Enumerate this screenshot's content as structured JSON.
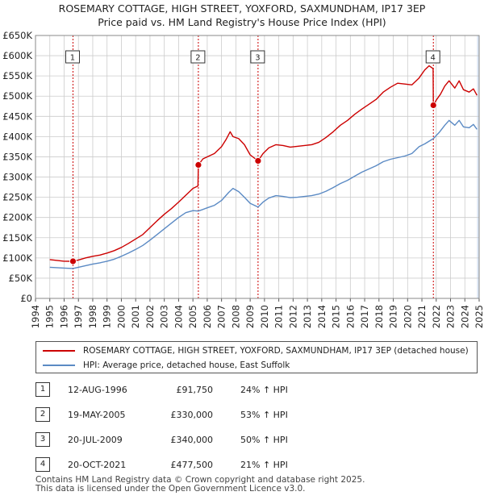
{
  "title_line1": "ROSEMARY COTTAGE, HIGH STREET, YOXFORD, SAXMUNDHAM, IP17 3EP",
  "title_line2": "Price paid vs. HM Land Registry's House Price Index (HPI)",
  "colors": {
    "property": "#cc0000",
    "hpi": "#5b8ac4",
    "marker_line": "#cc0000",
    "shade": "#dbe6f5",
    "grid": "#cccccc"
  },
  "legend": {
    "property": "ROSEMARY COTTAGE, HIGH STREET, YOXFORD, SAXMUNDHAM, IP17 3EP (detached house)",
    "hpi": "HPI: Average price, detached house, East Suffolk"
  },
  "sales": [
    {
      "num": "1",
      "date": "12-AUG-1996",
      "price": "£91,750",
      "hpi": "24% ↑ HPI"
    },
    {
      "num": "2",
      "date": "19-MAY-2005",
      "price": "£330,000",
      "hpi": "53% ↑ HPI"
    },
    {
      "num": "3",
      "date": "20-JUL-2009",
      "price": "£340,000",
      "hpi": "50% ↑ HPI"
    },
    {
      "num": "4",
      "date": "20-OCT-2021",
      "price": "£477,500",
      "hpi": "21% ↑ HPI"
    }
  ],
  "footer_line1": "Contains HM Land Registry data © Crown copyright and database right 2025.",
  "footer_line2": "This data is licensed under the Open Government Licence v3.0.",
  "chart_data": {
    "type": "line",
    "title": "ROSEMARY COTTAGE, HIGH STREET, YOXFORD, SAXMUNDHAM, IP17 3EP — Price paid vs. HM Land Registry's House Price Index (HPI)",
    "xlabel": "",
    "ylabel": "",
    "xlim": [
      1994,
      2025
    ],
    "ylim": [
      0,
      650000
    ],
    "x_ticks": [
      "1994",
      "1995",
      "1996",
      "1997",
      "1998",
      "1999",
      "2000",
      "2001",
      "2002",
      "2003",
      "2004",
      "2005",
      "2006",
      "2007",
      "2008",
      "2009",
      "2010",
      "2011",
      "2012",
      "2013",
      "2014",
      "2015",
      "2016",
      "2017",
      "2018",
      "2019",
      "2020",
      "2021",
      "2022",
      "2023",
      "2024",
      "2025"
    ],
    "y_ticks": [
      0,
      50000,
      100000,
      150000,
      200000,
      250000,
      300000,
      350000,
      400000,
      450000,
      500000,
      550000,
      600000,
      650000
    ],
    "y_tick_labels": [
      "£0",
      "£50K",
      "£100K",
      "£150K",
      "£200K",
      "£250K",
      "£300K",
      "£350K",
      "£400K",
      "£450K",
      "£500K",
      "£550K",
      "£600K",
      "£650K"
    ],
    "grid": true,
    "sale_markers": [
      {
        "label": "1",
        "x": 1996.62,
        "y": 91750
      },
      {
        "label": "2",
        "x": 2005.38,
        "y": 330000
      },
      {
        "label": "3",
        "x": 2009.55,
        "y": 340000
      },
      {
        "label": "4",
        "x": 2021.8,
        "y": 477500
      }
    ],
    "series": [
      {
        "name": "ROSEMARY COTTAGE, HIGH STREET, YOXFORD, SAXMUNDHAM, IP17 3EP (detached house)",
        "points": [
          [
            1995.0,
            96000
          ],
          [
            1995.5,
            94000
          ],
          [
            1996.0,
            92000
          ],
          [
            1996.62,
            91750
          ],
          [
            1997.0,
            95000
          ],
          [
            1997.5,
            100000
          ],
          [
            1998.0,
            104000
          ],
          [
            1998.5,
            107000
          ],
          [
            1999.0,
            112000
          ],
          [
            1999.5,
            118000
          ],
          [
            2000.0,
            126000
          ],
          [
            2000.5,
            136000
          ],
          [
            2001.0,
            147000
          ],
          [
            2001.5,
            158000
          ],
          [
            2002.0,
            175000
          ],
          [
            2002.5,
            192000
          ],
          [
            2003.0,
            208000
          ],
          [
            2003.5,
            222000
          ],
          [
            2004.0,
            238000
          ],
          [
            2004.5,
            255000
          ],
          [
            2005.0,
            272000
          ],
          [
            2005.35,
            278000
          ],
          [
            2005.38,
            330000
          ],
          [
            2005.7,
            345000
          ],
          [
            2006.0,
            350000
          ],
          [
            2006.5,
            358000
          ],
          [
            2007.0,
            375000
          ],
          [
            2007.3,
            392000
          ],
          [
            2007.6,
            412000
          ],
          [
            2007.8,
            400000
          ],
          [
            2008.2,
            395000
          ],
          [
            2008.6,
            380000
          ],
          [
            2009.0,
            355000
          ],
          [
            2009.55,
            340000
          ],
          [
            2009.9,
            358000
          ],
          [
            2010.3,
            372000
          ],
          [
            2010.8,
            380000
          ],
          [
            2011.3,
            378000
          ],
          [
            2011.8,
            374000
          ],
          [
            2012.3,
            376000
          ],
          [
            2012.8,
            378000
          ],
          [
            2013.3,
            380000
          ],
          [
            2013.8,
            386000
          ],
          [
            2014.3,
            398000
          ],
          [
            2014.8,
            412000
          ],
          [
            2015.3,
            428000
          ],
          [
            2015.8,
            440000
          ],
          [
            2016.3,
            455000
          ],
          [
            2016.8,
            468000
          ],
          [
            2017.3,
            480000
          ],
          [
            2017.8,
            492000
          ],
          [
            2018.3,
            510000
          ],
          [
            2018.8,
            522000
          ],
          [
            2019.3,
            532000
          ],
          [
            2019.8,
            530000
          ],
          [
            2020.3,
            528000
          ],
          [
            2020.8,
            545000
          ],
          [
            2021.2,
            565000
          ],
          [
            2021.5,
            575000
          ],
          [
            2021.78,
            568000
          ],
          [
            2021.8,
            477500
          ],
          [
            2022.0,
            490000
          ],
          [
            2022.3,
            505000
          ],
          [
            2022.6,
            525000
          ],
          [
            2022.9,
            538000
          ],
          [
            2023.3,
            520000
          ],
          [
            2023.6,
            538000
          ],
          [
            2023.9,
            516000
          ],
          [
            2024.3,
            510000
          ],
          [
            2024.6,
            518000
          ],
          [
            2024.85,
            502000
          ]
        ]
      },
      {
        "name": "HPI: Average price, detached house, East Suffolk",
        "points": [
          [
            1995.0,
            77000
          ],
          [
            1995.5,
            76000
          ],
          [
            1996.0,
            75000
          ],
          [
            1996.62,
            74000
          ],
          [
            1997.0,
            77000
          ],
          [
            1997.5,
            81000
          ],
          [
            1998.0,
            85000
          ],
          [
            1998.5,
            88000
          ],
          [
            1999.0,
            92000
          ],
          [
            1999.5,
            97000
          ],
          [
            2000.0,
            104000
          ],
          [
            2000.5,
            112000
          ],
          [
            2001.0,
            121000
          ],
          [
            2001.5,
            131000
          ],
          [
            2002.0,
            144000
          ],
          [
            2002.5,
            158000
          ],
          [
            2003.0,
            172000
          ],
          [
            2003.5,
            186000
          ],
          [
            2004.0,
            200000
          ],
          [
            2004.5,
            212000
          ],
          [
            2005.0,
            217000
          ],
          [
            2005.38,
            216000
          ],
          [
            2005.7,
            220000
          ],
          [
            2006.0,
            224000
          ],
          [
            2006.5,
            230000
          ],
          [
            2007.0,
            242000
          ],
          [
            2007.5,
            262000
          ],
          [
            2007.8,
            272000
          ],
          [
            2008.2,
            264000
          ],
          [
            2008.6,
            250000
          ],
          [
            2009.0,
            235000
          ],
          [
            2009.55,
            226000
          ],
          [
            2009.9,
            238000
          ],
          [
            2010.3,
            248000
          ],
          [
            2010.8,
            254000
          ],
          [
            2011.3,
            252000
          ],
          [
            2011.8,
            249000
          ],
          [
            2012.3,
            250000
          ],
          [
            2012.8,
            252000
          ],
          [
            2013.3,
            254000
          ],
          [
            2013.8,
            258000
          ],
          [
            2014.3,
            265000
          ],
          [
            2014.8,
            274000
          ],
          [
            2015.3,
            284000
          ],
          [
            2015.8,
            292000
          ],
          [
            2016.3,
            302000
          ],
          [
            2016.8,
            312000
          ],
          [
            2017.3,
            320000
          ],
          [
            2017.8,
            328000
          ],
          [
            2018.3,
            338000
          ],
          [
            2018.8,
            344000
          ],
          [
            2019.3,
            348000
          ],
          [
            2019.8,
            352000
          ],
          [
            2020.3,
            358000
          ],
          [
            2020.8,
            375000
          ],
          [
            2021.2,
            382000
          ],
          [
            2021.8,
            395000
          ],
          [
            2022.2,
            410000
          ],
          [
            2022.6,
            428000
          ],
          [
            2022.9,
            440000
          ],
          [
            2023.3,
            428000
          ],
          [
            2023.6,
            440000
          ],
          [
            2023.9,
            424000
          ],
          [
            2024.3,
            422000
          ],
          [
            2024.6,
            430000
          ],
          [
            2024.85,
            418000
          ]
        ]
      }
    ]
  }
}
